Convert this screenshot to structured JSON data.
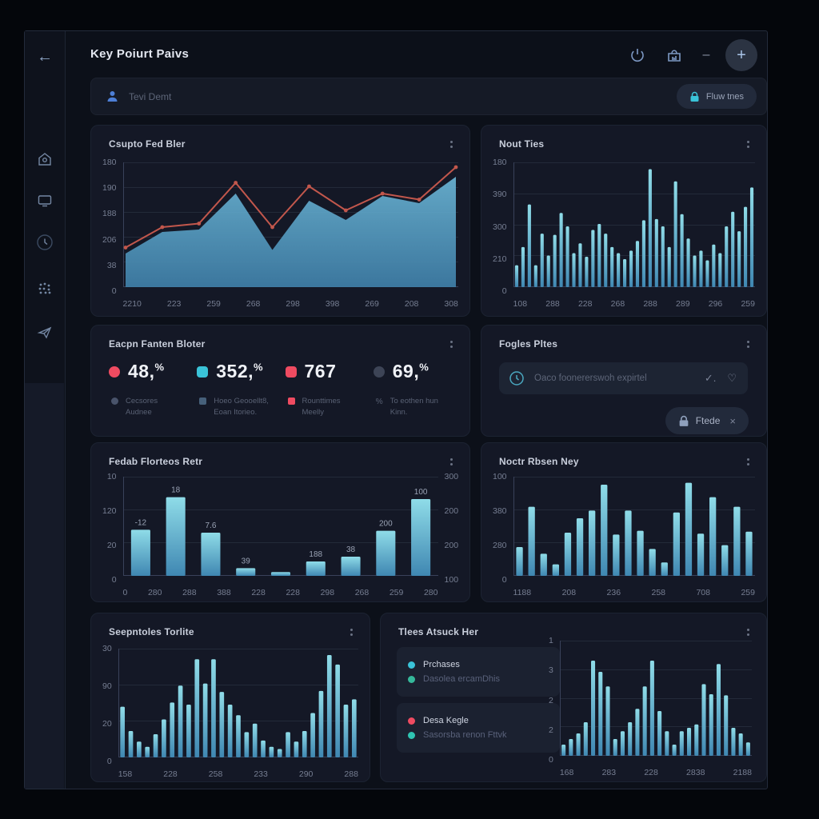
{
  "app": {
    "title": "Key Poiurt Paivs"
  },
  "header": {
    "actions": [
      "power",
      "upload",
      "minimize",
      "add"
    ],
    "minus_glyph": "–",
    "plus_glyph": "+"
  },
  "icons": {
    "back_glyph": "←",
    "check_glyph": "✓.",
    "heart_glyph": "♡",
    "close_glyph": "×",
    "sidebar": [
      "home-icon",
      "monitor-icon",
      "history-icon",
      "apps-grid-icon",
      "send-icon"
    ],
    "search_person": "person-icon",
    "lock": "lock-icon",
    "clock": "clock-icon"
  },
  "search": {
    "placeholder": "Tevi Demt",
    "button_label": "Fluw tnes"
  },
  "colors": {
    "bg": "#04060b",
    "frame": "#0c1019",
    "panel": "#141826",
    "cyan": "#3ac3d8",
    "red": "#ef4b61",
    "blue": "#4d7fd6",
    "bar_top": "#8fdce8",
    "bar_bottom": "#3f87b2",
    "area_top": "#6ab4d4",
    "area_bottom": "#3f7fa8",
    "line_red": "#c2574c"
  },
  "panels": {
    "trend": {
      "title": "Csupto Fed Bler",
      "chart": {
        "type": "area_line",
        "yticks": [
          "180",
          "190",
          "188",
          "206",
          "38",
          "0"
        ],
        "xticks": [
          "2210",
          "223",
          "259",
          "268",
          "298",
          "398",
          "269",
          "208",
          "308"
        ],
        "area": [
          0.28,
          0.46,
          0.48,
          0.78,
          0.31,
          0.72,
          0.56,
          0.76,
          0.7,
          0.92
        ],
        "line": [
          0.33,
          0.5,
          0.53,
          0.87,
          0.5,
          0.84,
          0.64,
          0.78,
          0.73,
          1.0
        ]
      }
    },
    "volume": {
      "title": "Nout Ties",
      "chart": {
        "type": "bar",
        "yticks": [
          "180",
          "390",
          "300",
          "210",
          "0"
        ],
        "xticks": [
          "108",
          "288",
          "228",
          "268",
          "288",
          "289",
          "296",
          "259"
        ],
        "values": [
          0.18,
          0.33,
          0.68,
          0.18,
          0.44,
          0.26,
          0.43,
          0.61,
          0.5,
          0.28,
          0.36,
          0.25,
          0.47,
          0.52,
          0.44,
          0.33,
          0.28,
          0.23,
          0.3,
          0.38,
          0.55,
          0.97,
          0.56,
          0.5,
          0.33,
          0.87,
          0.6,
          0.4,
          0.26,
          0.3,
          0.22,
          0.35,
          0.28,
          0.5,
          0.62,
          0.46,
          0.66,
          0.82
        ],
        "bar_ratio": 0.52
      }
    },
    "kpis": {
      "title": "Eacpn Fanten Bloter",
      "items": [
        {
          "value": "48,",
          "suffix": "%",
          "marker_color": "#ef4b61",
          "marker_shape": "circle",
          "sub": "Cecsores Audnee",
          "sub_marker": "circle",
          "sub_color": "#49536a"
        },
        {
          "value": "352,",
          "suffix": "%",
          "marker_color": "#3ac3d8",
          "marker_shape": "square",
          "sub": "Hoeo Geooellt8, Eoan Itorieo.",
          "sub_marker": "square",
          "sub_color": "#46607a"
        },
        {
          "value": "767",
          "suffix": "",
          "marker_color": "#ef4b61",
          "marker_shape": "square",
          "sub": "Rounttimes Meelly",
          "sub_marker": "square",
          "sub_color": "#ef4b61"
        },
        {
          "value": "69,",
          "suffix": "%",
          "marker_color": "#3d4456",
          "marker_shape": "circle",
          "sub": "To eothen hun Kinn.",
          "sub_marker": "percent",
          "sub_color": "#596174"
        }
      ]
    },
    "fogles": {
      "title": "Fogles Pltes",
      "input_placeholder": "Oaco foonererswoh expirtel",
      "chip_label": "Ftede"
    },
    "labeled": {
      "title": "Fedab Florteos Retr",
      "chart": {
        "type": "bar",
        "yticks": [
          "10",
          "120",
          "20",
          "0"
        ],
        "yticks_right": [
          "300",
          "200",
          "200",
          "100"
        ],
        "xticks": [
          "0",
          "280",
          "288",
          "388",
          "228",
          "228",
          "298",
          "268",
          "259",
          "280"
        ],
        "values": [
          0.48,
          0.82,
          0.45,
          0.08,
          0.04,
          0.15,
          0.2,
          0.47,
          0.8
        ],
        "bar_labels": [
          "-12",
          "18",
          "7.6",
          "39",
          "",
          "188",
          "38",
          "200",
          "100"
        ],
        "bar_ratio": 0.55
      }
    },
    "matrix": {
      "title": "Noctr Rbsen Ney",
      "chart": {
        "type": "bar",
        "yticks": [
          "100",
          "380",
          "280",
          "0"
        ],
        "xticks": [
          "1188",
          "208",
          "236",
          "258",
          "708",
          "259"
        ],
        "values": [
          0.3,
          0.72,
          0.23,
          0.12,
          0.45,
          0.6,
          0.68,
          0.95,
          0.43,
          0.68,
          0.47,
          0.28,
          0.14,
          0.66,
          0.97,
          0.44,
          0.82,
          0.32,
          0.72,
          0.46
        ],
        "bar_ratio": 0.55
      }
    },
    "seasonal": {
      "title": "Seepntoles Torlite",
      "chart": {
        "type": "bar",
        "yticks": [
          "30",
          "90",
          "20",
          "0"
        ],
        "xticks": [
          "158",
          "228",
          "258",
          "233",
          "290",
          "288"
        ],
        "values": [
          0.48,
          0.25,
          0.15,
          0.1,
          0.22,
          0.36,
          0.52,
          0.68,
          0.5,
          0.93,
          0.7,
          0.93,
          0.62,
          0.5,
          0.4,
          0.24,
          0.32,
          0.16,
          0.1,
          0.08,
          0.24,
          0.15,
          0.25,
          0.42,
          0.63,
          0.97,
          0.88,
          0.5,
          0.55
        ],
        "bar_ratio": 0.55
      }
    },
    "tracks": {
      "title": "Tlees Atsuck Her",
      "legend_cards": [
        {
          "rows": [
            {
              "color": "#3ac3d8",
              "label": "Prchases",
              "bright": true
            },
            {
              "color": "#35b89a",
              "label": "Dasolea ercamDhis",
              "bright": false
            }
          ]
        },
        {
          "rows": [
            {
              "color": "#ef4b61",
              "label": "Desa Kegle",
              "bright": true
            },
            {
              "color": "#2fc4b2",
              "label": "Sasorsba renon Fttvk",
              "bright": false
            }
          ]
        }
      ],
      "chart": {
        "type": "bar",
        "yticks": [
          "1",
          "3",
          "2",
          "2",
          "0"
        ],
        "xticks": [
          "168",
          "283",
          "228",
          "2838",
          "2188"
        ],
        "values": [
          0.1,
          0.15,
          0.2,
          0.3,
          0.85,
          0.75,
          0.62,
          0.15,
          0.22,
          0.3,
          0.42,
          0.62,
          0.85,
          0.4,
          0.22,
          0.1,
          0.22,
          0.25,
          0.28,
          0.64,
          0.55,
          0.82,
          0.54,
          0.25,
          0.2,
          0.12
        ],
        "bar_ratio": 0.55
      }
    }
  }
}
